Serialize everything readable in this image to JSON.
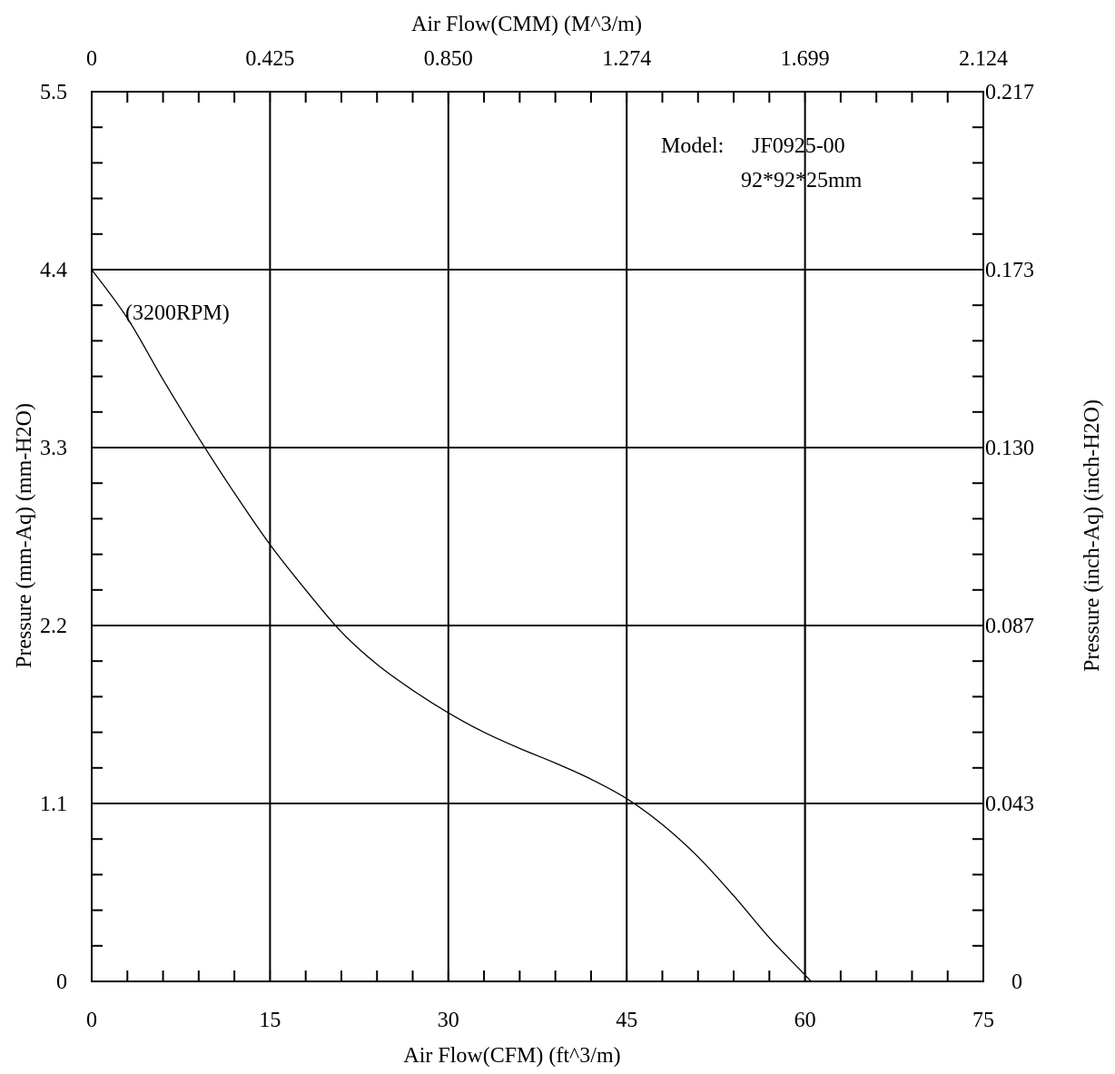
{
  "chart_data": {
    "type": "line",
    "title": "",
    "xlabel": "Air Flow(CFM) (ft^3/m)",
    "x2label": "Air Flow(CMM) (M^3/m)",
    "ylabel": "Pressure (mm-Aq) (mm-H2O)",
    "y2label": "Pressure (inch-Aq) (inch-H2O)",
    "xlim": [
      0,
      75
    ],
    "ylim": [
      0,
      5.5
    ],
    "grid": true,
    "x_ticks": [
      "0",
      "15",
      "30",
      "45",
      "60",
      "75"
    ],
    "x2_ticks": [
      "0",
      "0.425",
      "0.850",
      "1.274",
      "1.699",
      "2.124"
    ],
    "y_ticks": [
      "0",
      "1.1",
      "2.2",
      "3.3",
      "4.4",
      "5.5"
    ],
    "y2_ticks": [
      "0",
      "0.043",
      "0.087",
      "0.130",
      "0.173",
      "0.217"
    ],
    "x_major": [
      0,
      15,
      30,
      45,
      60,
      75
    ],
    "y_major": [
      0,
      1.1,
      2.2,
      3.3,
      4.4,
      5.5
    ],
    "x_minor_step": 3,
    "y_minor_step": 0.22,
    "reference_lines": [
      {
        "type": "vertical",
        "x": 60,
        "y_from": 0,
        "y_to": 4.4
      }
    ],
    "series": [
      {
        "x": [
          0,
          3,
          6,
          9,
          12,
          15,
          18,
          21,
          24,
          27,
          30,
          33,
          36,
          39,
          42,
          45,
          48,
          51,
          54,
          57,
          60,
          60.5
        ],
        "values": [
          4.4,
          4.1,
          3.72,
          3.36,
          3.02,
          2.7,
          2.42,
          2.16,
          1.96,
          1.8,
          1.66,
          1.54,
          1.44,
          1.35,
          1.25,
          1.13,
          0.97,
          0.77,
          0.53,
          0.27,
          0.04,
          0.0
        ]
      }
    ],
    "annotations": {
      "model_label": "Model:",
      "model_value": "JF0925-00",
      "model_size": "92*92*25mm",
      "rpm": "(3200RPM)"
    }
  }
}
